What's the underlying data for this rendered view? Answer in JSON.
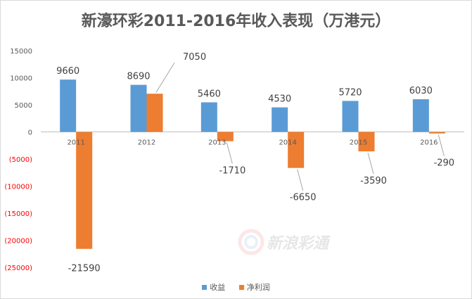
{
  "colors": {
    "revenue": "#5b9bd5",
    "net_profit": "#ed7d31",
    "axis": "#bfbfbf",
    "tick_text": "#595959",
    "negative_tick_text": "#ff0000"
  },
  "watermark": {
    "text": "新浪彩通"
  },
  "chart_data": {
    "type": "bar",
    "title": "新濠环彩2011-2016年收入表现（万港元）",
    "categories": [
      "2011",
      "2012",
      "2013",
      "2014",
      "2015",
      "2016"
    ],
    "series": [
      {
        "name": "收益",
        "values": [
          9660,
          8690,
          5460,
          4530,
          5720,
          6030
        ]
      },
      {
        "name": "净利润",
        "values": [
          -21590,
          7050,
          -1710,
          -6650,
          -3590,
          -290
        ]
      }
    ],
    "ylim": [
      -25000,
      15000
    ],
    "y_ticks": [
      15000,
      10000,
      5000,
      0,
      -5000,
      -10000,
      -15000,
      -20000,
      -25000
    ],
    "y_tick_labels": [
      "15000",
      "10000",
      "5000",
      "0",
      "(5000)",
      "(10000)",
      "(15000)",
      "(20000)",
      "(25000)"
    ],
    "data_labels": {
      "收益": [
        "9660",
        "8690",
        "5460",
        "4530",
        "5720",
        "6030"
      ],
      "净利润": [
        "-21590",
        "7050",
        "-1710",
        "-6650",
        "-3590",
        "-290"
      ]
    },
    "grid": false,
    "legend_position": "bottom"
  }
}
